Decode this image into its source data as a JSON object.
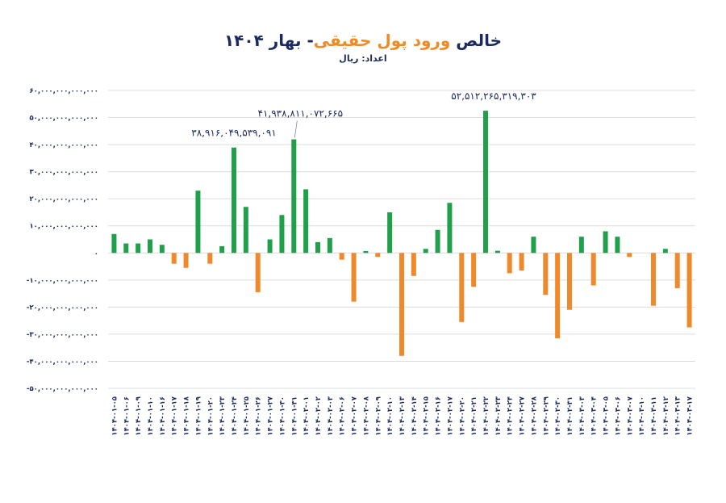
{
  "chart_data": {
    "type": "bar",
    "title": [
      {
        "text": "خالص ",
        "color": "#1b2a5e"
      },
      {
        "text": "ورود پول حقیقی",
        "color": "#f08a24"
      },
      {
        "text": "- بهار ۱۴۰۴",
        "color": "#1b2a5e"
      }
    ],
    "subtitle": "اعداد: ریال",
    "categories": [
      "۱۴۰۴-۰۱-۰۵",
      "۱۴۰۴-۰۱-۰۶",
      "۱۴۰۴-۰۱-۰۹",
      "۱۴۰۴-۰۱-۱۰",
      "۱۴۰۴-۰۱-۱۶",
      "۱۴۰۴-۰۱-۱۷",
      "۱۴۰۴-۰۱-۱۸",
      "۱۴۰۴-۰۱-۱۹",
      "۱۴۰۴-۰۱-۲۰",
      "۱۴۰۴-۰۱-۲۳",
      "۱۴۰۴-۰۱-۲۴",
      "۱۴۰۴-۰۱-۲۵",
      "۱۴۰۴-۰۱-۲۶",
      "۱۴۰۴-۰۱-۲۷",
      "۱۴۰۴-۰۱-۳۰",
      "۱۴۰۴-۰۱-۳۱",
      "۱۴۰۴-۰۲-۰۱",
      "۱۴۰۴-۰۲-۰۲",
      "۱۴۰۴-۰۲-۰۳",
      "۱۴۰۴-۰۲-۰۶",
      "۱۴۰۴-۰۲-۰۷",
      "۱۴۰۴-۰۲-۰۸",
      "۱۴۰۴-۰۲-۰۹",
      "۱۴۰۴-۰۲-۱۰",
      "۱۴۰۴-۰۲-۱۳",
      "۱۴۰۴-۰۲-۱۴",
      "۱۴۰۴-۰۲-۱۵",
      "۱۴۰۴-۰۲-۱۶",
      "۱۴۰۴-۰۲-۱۷",
      "۱۴۰۴-۰۲-۲۰",
      "۱۴۰۴-۰۲-۲۱",
      "۱۴۰۴-۰۲-۲۲",
      "۱۴۰۴-۰۲-۲۳",
      "۱۴۰۴-۰۲-۲۴",
      "۱۴۰۴-۰۲-۲۷",
      "۱۴۰۴-۰۲-۲۸",
      "۱۴۰۴-۰۲-۲۹",
      "۱۴۰۴-۰۲-۳۰",
      "۱۴۰۴-۰۲-۳۱",
      "۱۴۰۴-۰۳-۰۳",
      "۱۴۰۴-۰۳-۰۴",
      "۱۴۰۴-۰۳-۰۵",
      "۱۴۰۴-۰۳-۰۶",
      "۱۴۰۴-۰۳-۰۷",
      "۱۴۰۴-۰۳-۱۰",
      "۱۴۰۴-۰۳-۱۱",
      "۱۴۰۴-۰۳-۱۲",
      "۱۴۰۴-۰۳-۱۳",
      "۱۴۰۴-۰۳-۱۷"
    ],
    "values": [
      7000000000000.0,
      3500000000000.0,
      3500000000000.0,
      5000000000000.0,
      3000000000000.0,
      -4000000000000.0,
      -5500000000000.0,
      23000000000000.0,
      -4000000000000.0,
      2500000000000.0,
      38916049539091,
      17000000000000.0,
      -14500000000000.0,
      5000000000000.0,
      14000000000000.0,
      41938811072665,
      23500000000000.0,
      4000000000000.0,
      5500000000000.0,
      -2500000000000.0,
      -18000000000000.0,
      700000000000.0,
      -1500000000000.0,
      15000000000000.0,
      -38000000000000.0,
      -8500000000000.0,
      1500000000000.0,
      8500000000000.0,
      18500000000000.0,
      -25500000000000.0,
      -12500000000000.0,
      52512265319303,
      800000000000.0,
      -7500000000000.0,
      -6500000000000.0,
      6000000000000.0,
      -15500000000000.0,
      -31500000000000.0,
      -21000000000000.0,
      6000000000000.0,
      -12000000000000.0,
      8000000000000.0,
      6000000000000.0,
      -1500000000000.0,
      0,
      -19500000000000.0,
      1500000000000.0,
      -13000000000000.0,
      -27500000000000.0
    ],
    "value_labels": [
      null,
      null,
      null,
      null,
      null,
      null,
      null,
      null,
      null,
      null,
      "۳۸,۹۱۶,۰۴۹,۵۳۹,۰۹۱",
      null,
      null,
      null,
      null,
      "۴۱,۹۳۸,۸۱۱,۰۷۲,۶۶۵",
      null,
      null,
      null,
      null,
      null,
      null,
      null,
      null,
      null,
      null,
      null,
      null,
      null,
      null,
      null,
      "۵۲,۵۱۲,۲۶۵,۳۱۹,۳۰۳",
      null,
      null,
      null,
      null,
      null,
      null,
      null,
      null,
      null,
      null,
      null,
      null,
      null,
      null,
      null,
      null,
      null
    ],
    "positive_color": "#21a04c",
    "negative_color": "#f0892a",
    "ylim": [
      -50000000000000,
      60000000000000
    ],
    "yticks": [
      {
        "value": -50000000000000,
        "label": "-۵۰,۰۰۰,۰۰۰,۰۰۰,۰۰۰"
      },
      {
        "value": -40000000000000,
        "label": "-۴۰,۰۰۰,۰۰۰,۰۰۰,۰۰۰"
      },
      {
        "value": -30000000000000,
        "label": "-۳۰,۰۰۰,۰۰۰,۰۰۰,۰۰۰"
      },
      {
        "value": -20000000000000,
        "label": "-۲۰,۰۰۰,۰۰۰,۰۰۰,۰۰۰"
      },
      {
        "value": -10000000000000,
        "label": "-۱۰,۰۰۰,۰۰۰,۰۰۰,۰۰۰"
      },
      {
        "value": 0,
        "label": "۰"
      },
      {
        "value": 10000000000000,
        "label": "۱۰,۰۰۰,۰۰۰,۰۰۰,۰۰۰"
      },
      {
        "value": 20000000000000,
        "label": "۲۰,۰۰۰,۰۰۰,۰۰۰,۰۰۰"
      },
      {
        "value": 30000000000000,
        "label": "۳۰,۰۰۰,۰۰۰,۰۰۰,۰۰۰"
      },
      {
        "value": 40000000000000,
        "label": "۴۰,۰۰۰,۰۰۰,۰۰۰,۰۰۰"
      },
      {
        "value": 50000000000000,
        "label": "۵۰,۰۰۰,۰۰۰,۰۰۰,۰۰۰"
      },
      {
        "value": 60000000000000,
        "label": "۶۰,۰۰۰,۰۰۰,۰۰۰,۰۰۰"
      }
    ],
    "grid": true
  }
}
